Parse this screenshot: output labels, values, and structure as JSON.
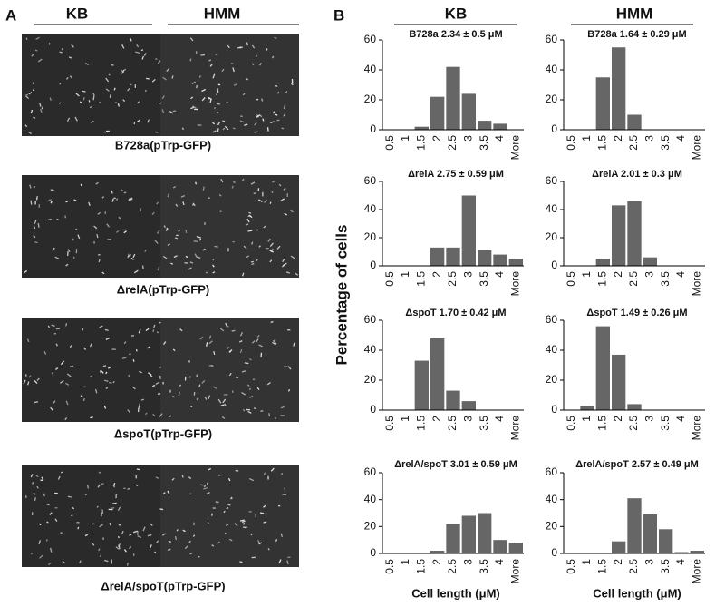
{
  "panel_a": {
    "label": "A",
    "columns": [
      "KB",
      "HMM"
    ],
    "captions": [
      "B728a(pTrp-GFP)",
      "ΔrelA(pTrp-GFP)",
      "ΔspoT(pTrp-GFP)",
      "ΔrelA/spoT(pTrp-GFP)"
    ]
  },
  "panel_b": {
    "label": "B",
    "columns": [
      "KB",
      "HMM"
    ],
    "y_label": "Percentage of cells"
  },
  "chart_data": [
    {
      "type": "bar",
      "title": "B728a 2.34 ± 0.5 μM",
      "categories": [
        "0.5",
        "1",
        "1.5",
        "2",
        "2.5",
        "3",
        "3.5",
        "4",
        "More"
      ],
      "values": [
        0,
        0,
        2,
        22,
        42,
        24,
        6,
        4,
        0
      ],
      "color": "#666666",
      "ylim": [
        0,
        60
      ],
      "yticks": [
        0,
        20,
        40,
        60
      ]
    },
    {
      "type": "bar",
      "title": "B728a 1.64 ± 0.29 μM",
      "categories": [
        "0.5",
        "1",
        "1.5",
        "2",
        "2.5",
        "3",
        "3.5",
        "4",
        "More"
      ],
      "values": [
        0,
        0,
        35,
        55,
        10,
        0,
        0,
        0,
        0
      ],
      "color": "#666666",
      "ylim": [
        0,
        60
      ],
      "yticks": [
        0,
        20,
        40,
        60
      ]
    },
    {
      "type": "bar",
      "title": "ΔrelA 2.75 ± 0.59 μM",
      "categories": [
        "0.5",
        "1",
        "1.5",
        "2",
        "2.5",
        "3",
        "3.5",
        "4",
        "More"
      ],
      "values": [
        0,
        0,
        0,
        13,
        13,
        50,
        11,
        8,
        5
      ],
      "color": "#666666",
      "ylim": [
        0,
        60
      ],
      "yticks": [
        0,
        20,
        40,
        60
      ]
    },
    {
      "type": "bar",
      "title": "ΔrelA 2.01 ± 0.3 μM",
      "categories": [
        "0.5",
        "1",
        "1.5",
        "2",
        "2.5",
        "3",
        "3.5",
        "4",
        "More"
      ],
      "values": [
        0,
        0,
        5,
        43,
        46,
        6,
        0,
        0,
        0
      ],
      "color": "#666666",
      "ylim": [
        0,
        60
      ],
      "yticks": [
        0,
        20,
        40,
        60
      ]
    },
    {
      "type": "bar",
      "title": "ΔspoT 1.70 ± 0.42 μM",
      "categories": [
        "0.5",
        "1",
        "1.5",
        "2",
        "2.5",
        "3",
        "3.5",
        "4",
        "More"
      ],
      "values": [
        0,
        0,
        33,
        48,
        13,
        6,
        0,
        0,
        0
      ],
      "color": "#666666",
      "ylim": [
        0,
        60
      ],
      "yticks": [
        0,
        20,
        40,
        60
      ]
    },
    {
      "type": "bar",
      "title": "ΔspoT 1.49 ± 0.26 μM",
      "categories": [
        "0.5",
        "1",
        "1.5",
        "2",
        "2.5",
        "3",
        "3.5",
        "4",
        "More"
      ],
      "values": [
        0,
        3,
        56,
        37,
        4,
        0,
        0,
        0,
        0
      ],
      "color": "#666666",
      "ylim": [
        0,
        60
      ],
      "yticks": [
        0,
        20,
        40,
        60
      ]
    },
    {
      "type": "bar",
      "title": "ΔrelA/spoT 3.01 ± 0.59 μM",
      "categories": [
        "0.5",
        "1",
        "1.5",
        "2",
        "2.5",
        "3",
        "3.5",
        "4",
        "More"
      ],
      "values": [
        0,
        0,
        0,
        2,
        22,
        28,
        30,
        10,
        8
      ],
      "color": "#666666",
      "ylim": [
        0,
        60
      ],
      "yticks": [
        0,
        20,
        40,
        60
      ],
      "xlabel": "Cell length (μM)"
    },
    {
      "type": "bar",
      "title": "ΔrelA/spoT 2.57 ± 0.49 μM",
      "categories": [
        "0.5",
        "1",
        "1.5",
        "2",
        "2.5",
        "3",
        "3.5",
        "4",
        "More"
      ],
      "values": [
        0,
        0,
        0,
        9,
        41,
        29,
        18,
        1,
        2
      ],
      "color": "#666666",
      "ylim": [
        0,
        60
      ],
      "yticks": [
        0,
        20,
        40,
        60
      ],
      "xlabel": "Cell length (μM)"
    }
  ]
}
